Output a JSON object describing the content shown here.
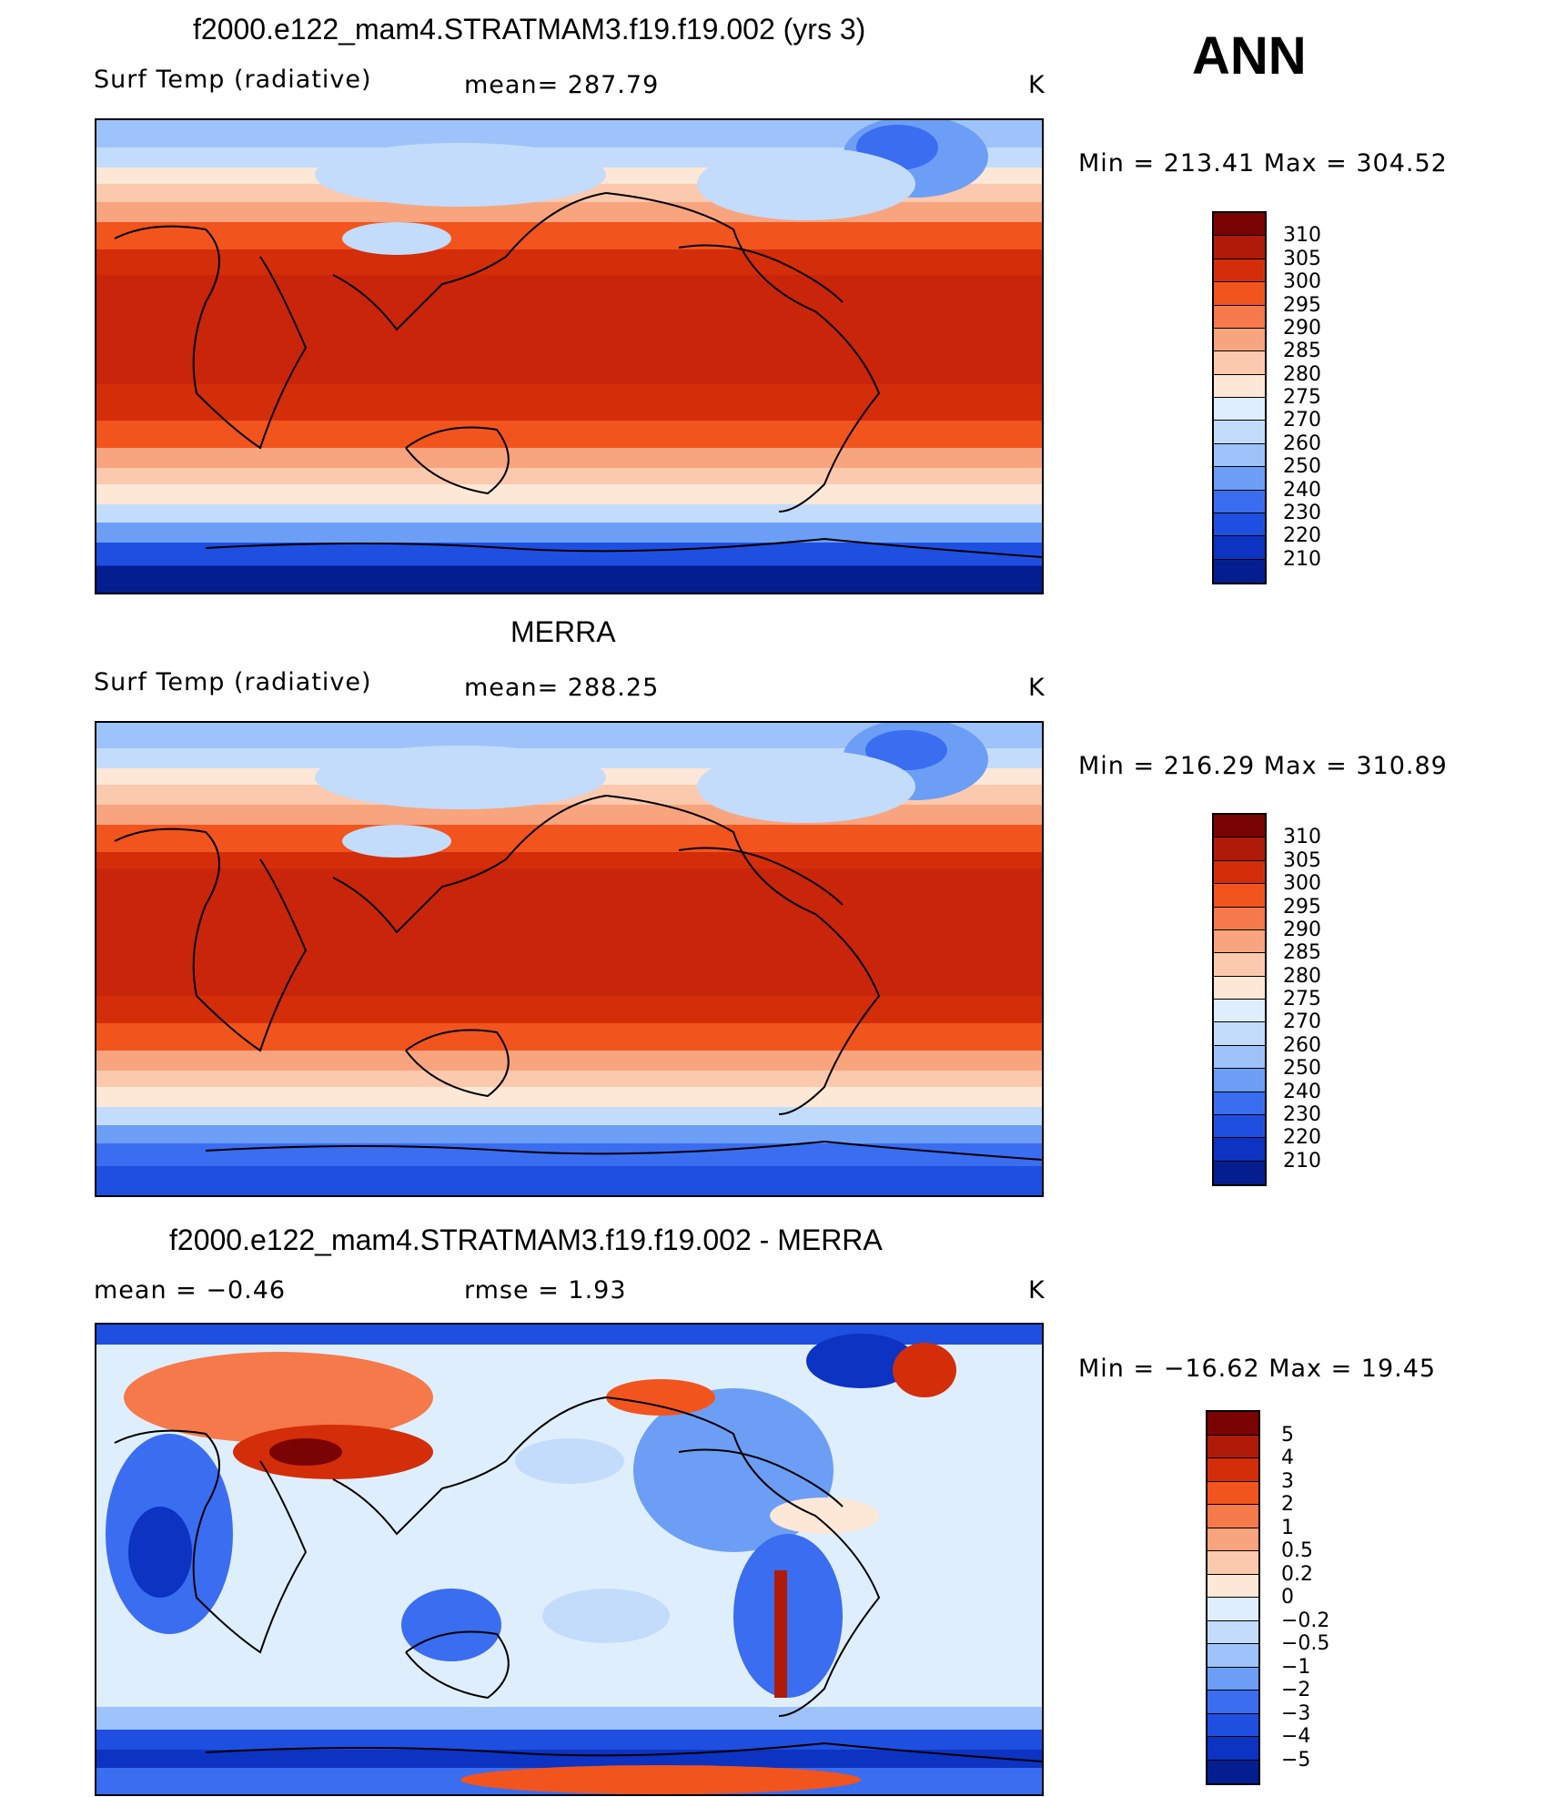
{
  "season": "ANN",
  "panels": [
    {
      "title": "f2000.e122_mam4.STRATMAM3.f19.f19.002 (yrs 3)",
      "variable": "Surf Temp (radiative)",
      "stat": "mean=  287.79",
      "units": "K",
      "minmax": "Min  =  213.41  Max  =  304.52"
    },
    {
      "title": "MERRA",
      "variable": "Surf Temp (radiative)",
      "stat": "mean=  288.25",
      "units": "K",
      "minmax": "Min  =  216.29  Max  =  310.89"
    },
    {
      "title": "f2000.e122_mam4.STRATMAM3.f19.f19.002 - MERRA",
      "variable": "mean  =    −0.46",
      "stat": "rmse  =     1.93",
      "units": "K",
      "minmax": "Min  =  −16.62  Max  =    19.45"
    }
  ],
  "colorbars": {
    "temperature": {
      "labels": [
        "310",
        "305",
        "300",
        "295",
        "290",
        "285",
        "280",
        "275",
        "270",
        "260",
        "250",
        "240",
        "230",
        "220",
        "210"
      ],
      "colors": [
        "#7a0403",
        "#b01a08",
        "#d42d0a",
        "#f2541e",
        "#f5794a",
        "#f8a47e",
        "#fbc9ad",
        "#fde7d6",
        "#dfeefd",
        "#c3dcfb",
        "#9dc3fa",
        "#6c9ef5",
        "#3a6df0",
        "#1f4fe0",
        "#0c33c2",
        "#051e8f"
      ]
    },
    "difference": {
      "labels": [
        "5",
        "4",
        "3",
        "2",
        "1",
        "0.5",
        "0.2",
        "0",
        "−0.2",
        "−0.5",
        "−1",
        "−2",
        "−3",
        "−4",
        "−5"
      ],
      "colors": [
        "#7a0403",
        "#b01a08",
        "#d42d0a",
        "#f2541e",
        "#f5794a",
        "#f8a47e",
        "#fbc9ad",
        "#fde7d6",
        "#dfeefd",
        "#c3dcfb",
        "#9dc3fa",
        "#6c9ef5",
        "#3a6df0",
        "#1f4fe0",
        "#0c33c2",
        "#051e8f"
      ]
    }
  }
}
